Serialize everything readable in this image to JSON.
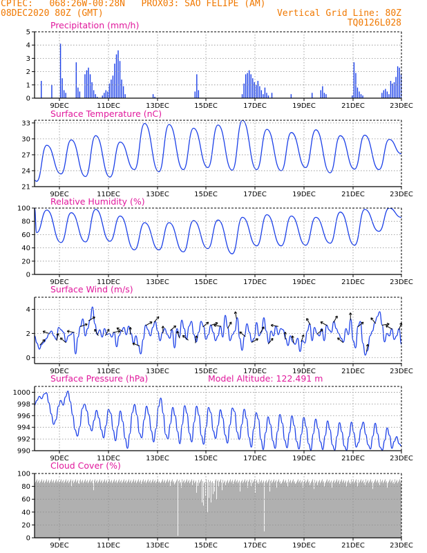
{
  "header": {
    "left1": "CPTEC:   068:26W-00:28N   PROX03: SAO FELIPE (AM)",
    "left2": "08DEC2020 80Z (GMT)",
    "right2": "Vertical Grid Line: 80Z",
    "right3": "TQ0126L028"
  },
  "colors": {
    "series": "#1a3fe8",
    "title": "#e0189c",
    "header": "#f07800",
    "cloud": "#b0b0b0"
  },
  "x_ticks": [
    "9DEC",
    "11DEC",
    "13DEC",
    "15DEC",
    "17DEC",
    "19DEC",
    "21DEC",
    "23DEC"
  ],
  "chart_data": [
    {
      "type": "bar",
      "title": "Precipitation (mm/h)",
      "ylim": [
        0,
        5
      ],
      "yticks": [
        "0",
        "1",
        "2",
        "3",
        "4",
        "5"
      ],
      "x_start": "08DEC2020 08Z",
      "x_end": "23DEC2020 08Z",
      "day_values": [
        [
          0,
          0,
          0,
          1.3,
          0,
          0,
          0,
          0,
          0,
          1.0,
          0,
          0,
          0,
          0
        ],
        [
          4.1,
          1.5,
          0.6,
          0.4,
          0,
          0,
          0,
          0,
          0,
          2.7,
          0.8,
          0.5,
          0,
          0
        ],
        [
          1.8,
          2.1,
          2.3,
          1.8,
          1.2,
          0.6,
          0.3,
          0.1,
          0,
          0,
          0.2,
          0.4,
          0.6,
          0.5
        ],
        [
          1.1,
          1.4,
          1.7,
          2.6,
          3.3,
          3.6,
          2.8,
          1.4,
          0.9,
          0.3,
          0,
          0,
          0,
          0
        ],
        [
          0,
          0,
          0,
          0,
          0,
          0,
          0,
          0,
          0,
          0,
          0,
          0.3,
          0.1,
          0
        ],
        [
          0,
          0,
          0,
          0,
          0,
          0,
          0,
          0,
          0,
          0,
          0,
          0,
          0,
          0
        ],
        [
          0,
          0,
          0,
          0,
          0,
          0,
          0,
          0.5,
          1.8,
          0.6,
          0,
          0,
          0,
          0
        ],
        [
          0,
          0,
          0,
          0,
          0,
          0,
          0,
          0,
          0,
          0,
          0,
          0,
          0,
          0
        ],
        [
          0,
          0,
          0,
          0,
          0,
          0,
          0.3,
          1.1,
          1.8,
          1.9,
          2.1,
          1.8,
          1.5,
          1.2
        ],
        [
          1.0,
          1.3,
          0.9,
          0.6,
          0.3,
          0.8,
          0.4,
          0.2,
          0,
          0.4,
          0,
          0,
          0,
          0
        ],
        [
          0,
          0,
          0,
          0,
          0,
          0,
          0.3,
          0,
          0,
          0,
          0,
          0,
          0,
          0
        ],
        [
          0,
          0,
          0,
          0,
          0.4,
          0,
          0,
          0,
          0,
          0.6,
          0.9,
          0.4,
          0.3,
          0
        ],
        [
          0,
          0,
          0,
          0,
          0,
          0,
          0,
          0,
          0,
          0,
          0,
          0,
          0,
          0.2
        ],
        [
          2.7,
          1.9,
          0.8,
          0.5,
          0.3,
          0.2,
          0,
          0,
          0,
          0,
          0,
          0,
          0,
          0
        ],
        [
          0,
          0,
          0.4,
          0.6,
          0.7,
          0.5,
          0.3,
          1.3,
          1.1,
          1.2,
          1.6,
          2.4,
          2.3,
          1.8
        ]
      ]
    },
    {
      "type": "line",
      "title": "Surface Temperature (nC)",
      "ylim": [
        21,
        33.5
      ],
      "yticks": [
        "21",
        "24",
        "27",
        "30",
        "33"
      ],
      "day_min": [
        22.0,
        23.4,
        22.9,
        22.8,
        24.2,
        23.8,
        24.2,
        24.6,
        24.1,
        24.2,
        24.0,
        24.6,
        23.6,
        24.3,
        24.2
      ],
      "day_max": [
        28.8,
        29.8,
        30.6,
        29.4,
        32.9,
        32.7,
        32.0,
        32.6,
        33.5,
        31.8,
        31.2,
        31.7,
        30.6,
        30.7,
        29.9
      ],
      "start": 22.2,
      "end": 27.2
    },
    {
      "type": "line",
      "title": "Relative Humidity (%)",
      "ylim": [
        0,
        100
      ],
      "yticks": [
        "0",
        "20",
        "40",
        "60",
        "80",
        "100"
      ],
      "day_min": [
        63,
        48,
        49,
        50,
        37,
        37,
        34,
        39,
        31,
        43,
        43,
        44,
        47,
        44,
        65
      ],
      "day_max": [
        97,
        93,
        98,
        88,
        78,
        78,
        81,
        82,
        86,
        90,
        88,
        86,
        94,
        98,
        100
      ],
      "start": 100,
      "end": 86
    },
    {
      "type": "line",
      "title": "Surface Wind (m/s)",
      "ylim": [
        -0.5,
        5.0
      ],
      "yticks": [
        "0",
        "2",
        "4"
      ],
      "values": [
        1.8,
        1.2,
        0.7,
        1.1,
        1.3,
        1.6,
        2.0,
        2.2,
        1.8,
        1.5,
        2.5,
        2.3,
        2.1,
        1.3,
        1.8,
        1.9,
        2.1,
        0.3,
        1.7,
        2.6,
        3.2,
        1.8,
        2.4,
        3.1,
        4.2,
        2.8,
        1.9,
        2.3,
        1.7,
        2.4,
        1.9,
        2.0,
        1.7,
        2.1,
        0.9,
        1.8,
        2.2,
        2.5,
        1.9,
        2.6,
        2.0,
        1.2,
        1.8,
        1.0,
        0.3,
        1.5,
        2.7,
        2.3,
        1.8,
        2.5,
        3.0,
        2.2,
        1.4,
        2.1,
        2.4,
        1.9,
        1.6,
        2.3,
        0.8,
        2.4,
        1.7,
        3.1,
        2.4,
        1.5,
        2.6,
        3.0,
        1.9,
        1.3,
        2.1,
        3.0,
        2.6,
        1.5,
        1.9,
        2.7,
        2.1,
        1.4,
        1.8,
        2.6,
        1.7,
        3.5,
        2.5,
        1.4,
        1.9,
        2.2,
        3.3,
        1.6,
        0.6,
        1.8,
        2.8,
        2.1,
        1.3,
        1.6,
        2.9,
        1.8,
        2.1,
        3.3,
        2.2,
        1.2,
        2.2,
        1.8,
        2.6,
        1.9,
        2.4,
        2.3,
        1.6,
        1.0,
        1.8,
        1.3,
        1.1,
        1.6,
        0.5,
        1.4,
        1.2,
        2.2,
        2.8,
        1.4,
        2.5,
        2.0,
        1.8,
        2.4,
        1.4,
        2.7,
        2.3,
        2.1,
        3.0,
        2.4,
        2.0,
        1.6,
        1.3,
        2.4,
        1.9,
        3.2,
        1.4,
        0.8,
        2.6,
        3.0,
        1.2,
        0.2,
        0.6,
        1.8,
        2.2,
        2.9,
        3.4,
        3.8,
        2.7,
        1.3,
        2.0,
        1.8,
        2.4,
        1.5,
        1.8,
        2.4,
        1.1
      ],
      "arrow_every_hours": 8,
      "arrow_dirs": [
        50,
        160,
        80,
        140,
        170,
        20,
        30,
        120,
        60,
        10,
        150,
        90,
        160,
        30,
        50,
        90,
        40,
        110,
        140,
        80,
        40,
        20,
        170,
        60,
        100,
        140,
        30,
        60,
        50,
        170,
        90,
        100,
        70,
        120,
        40,
        150,
        60,
        140,
        90,
        40,
        80,
        130,
        10,
        150,
        70
      ]
    },
    {
      "type": "line",
      "title": "Surface Pressure (hPa)",
      "note": "Model Altitude: 122.491  m",
      "ylim": [
        990,
        1001
      ],
      "yticks": [
        "990",
        "992",
        "994",
        "996",
        "998",
        "1000"
      ],
      "values": [
        997.8,
        998.6,
        999.3,
        998.9,
        999.7,
        999.9,
        998.2,
        996.3,
        994.5,
        995.3,
        997.6,
        998.6,
        997.8,
        999.2,
        1000.2,
        998.4,
        996.1,
        993.6,
        992.5,
        994.1,
        997.2,
        998.0,
        996.8,
        994.4,
        993.4,
        995.2,
        996.9,
        995.6,
        993.6,
        992.2,
        994.3,
        997.1,
        996.4,
        993.5,
        991.7,
        994.2,
        996.8,
        995.0,
        992.1,
        990.4,
        992.9,
        996.5,
        997.9,
        996.1,
        993.0,
        992.2,
        995.3,
        997.6,
        996.2,
        993.4,
        991.5,
        993.8,
        997.5,
        999.0,
        996.4,
        992.8,
        992.0,
        994.6,
        997.4,
        996.0,
        993.3,
        991.2,
        994.5,
        997.7,
        996.4,
        993.0,
        991.5,
        994.9,
        997.6,
        996.1,
        992.6,
        991.1,
        994.0,
        997.4,
        996.5,
        993.4,
        992.1,
        994.3,
        997.0,
        995.6,
        992.7,
        991.3,
        994.4,
        997.3,
        996.7,
        993.2,
        991.9,
        994.5,
        997.1,
        995.5,
        992.3,
        990.6,
        993.7,
        996.5,
        995.4,
        991.9,
        990.2,
        993.1,
        995.8,
        994.5,
        991.7,
        990.4,
        993.3,
        996.2,
        994.7,
        991.8,
        990.5,
        993.1,
        996.0,
        994.3,
        991.6,
        990.3,
        992.8,
        995.7,
        994.1,
        991.2,
        990.1,
        992.9,
        995.4,
        993.8,
        991.5,
        990.2,
        992.6,
        995.1,
        993.6,
        991.0,
        990.1,
        992.5,
        994.8,
        993.2,
        990.8,
        990.1,
        992.4,
        994.9,
        993.1,
        990.6,
        991.4,
        993.7,
        994.9,
        992.8,
        991.0,
        990.3,
        992.5,
        994.7,
        992.9,
        990.6,
        990.1,
        991.8,
        993.9,
        992.6,
        990.4,
        991.6,
        992.4,
        991.2,
        990.8
      ]
    },
    {
      "type": "area",
      "title": "Cloud Cover (%)",
      "ylim": [
        0,
        100
      ],
      "yticks": [
        "0",
        "20",
        "40",
        "60",
        "80",
        "100"
      ],
      "typical": 88,
      "dips": [
        [
          0.1,
          80
        ],
        [
          0.12,
          84
        ],
        [
          0.16,
          74
        ],
        [
          0.22,
          88
        ],
        [
          0.29,
          84
        ],
        [
          0.34,
          86
        ],
        [
          0.37,
          80
        ],
        [
          0.38,
          83
        ],
        [
          0.39,
          3
        ],
        [
          0.4,
          78
        ],
        [
          0.43,
          82
        ],
        [
          0.44,
          86
        ],
        [
          0.44,
          70
        ],
        [
          0.445,
          80
        ],
        [
          0.455,
          55
        ],
        [
          0.46,
          50
        ],
        [
          0.465,
          65
        ],
        [
          0.47,
          40
        ],
        [
          0.475,
          62
        ],
        [
          0.48,
          55
        ],
        [
          0.485,
          68
        ],
        [
          0.49,
          72
        ],
        [
          0.495,
          60
        ],
        [
          0.5,
          80
        ],
        [
          0.51,
          74
        ],
        [
          0.52,
          82
        ],
        [
          0.54,
          84
        ],
        [
          0.56,
          72
        ],
        [
          0.58,
          78
        ],
        [
          0.59,
          80
        ],
        [
          0.6,
          70
        ],
        [
          0.61,
          84
        ],
        [
          0.625,
          10
        ],
        [
          0.64,
          72
        ],
        [
          0.66,
          78
        ],
        [
          0.67,
          84
        ],
        [
          0.69,
          80
        ],
        [
          0.71,
          84
        ],
        [
          0.73,
          78
        ],
        [
          0.75,
          82
        ],
        [
          0.76,
          76
        ],
        [
          0.77,
          82
        ],
        [
          0.79,
          80
        ],
        [
          0.81,
          78
        ],
        [
          0.83,
          84
        ],
        [
          0.85,
          80
        ],
        [
          0.86,
          84
        ],
        [
          0.88,
          80
        ],
        [
          0.9,
          82
        ],
        [
          0.92,
          76
        ],
        [
          0.94,
          82
        ],
        [
          0.96,
          78
        ],
        [
          0.98,
          84
        ]
      ]
    }
  ]
}
